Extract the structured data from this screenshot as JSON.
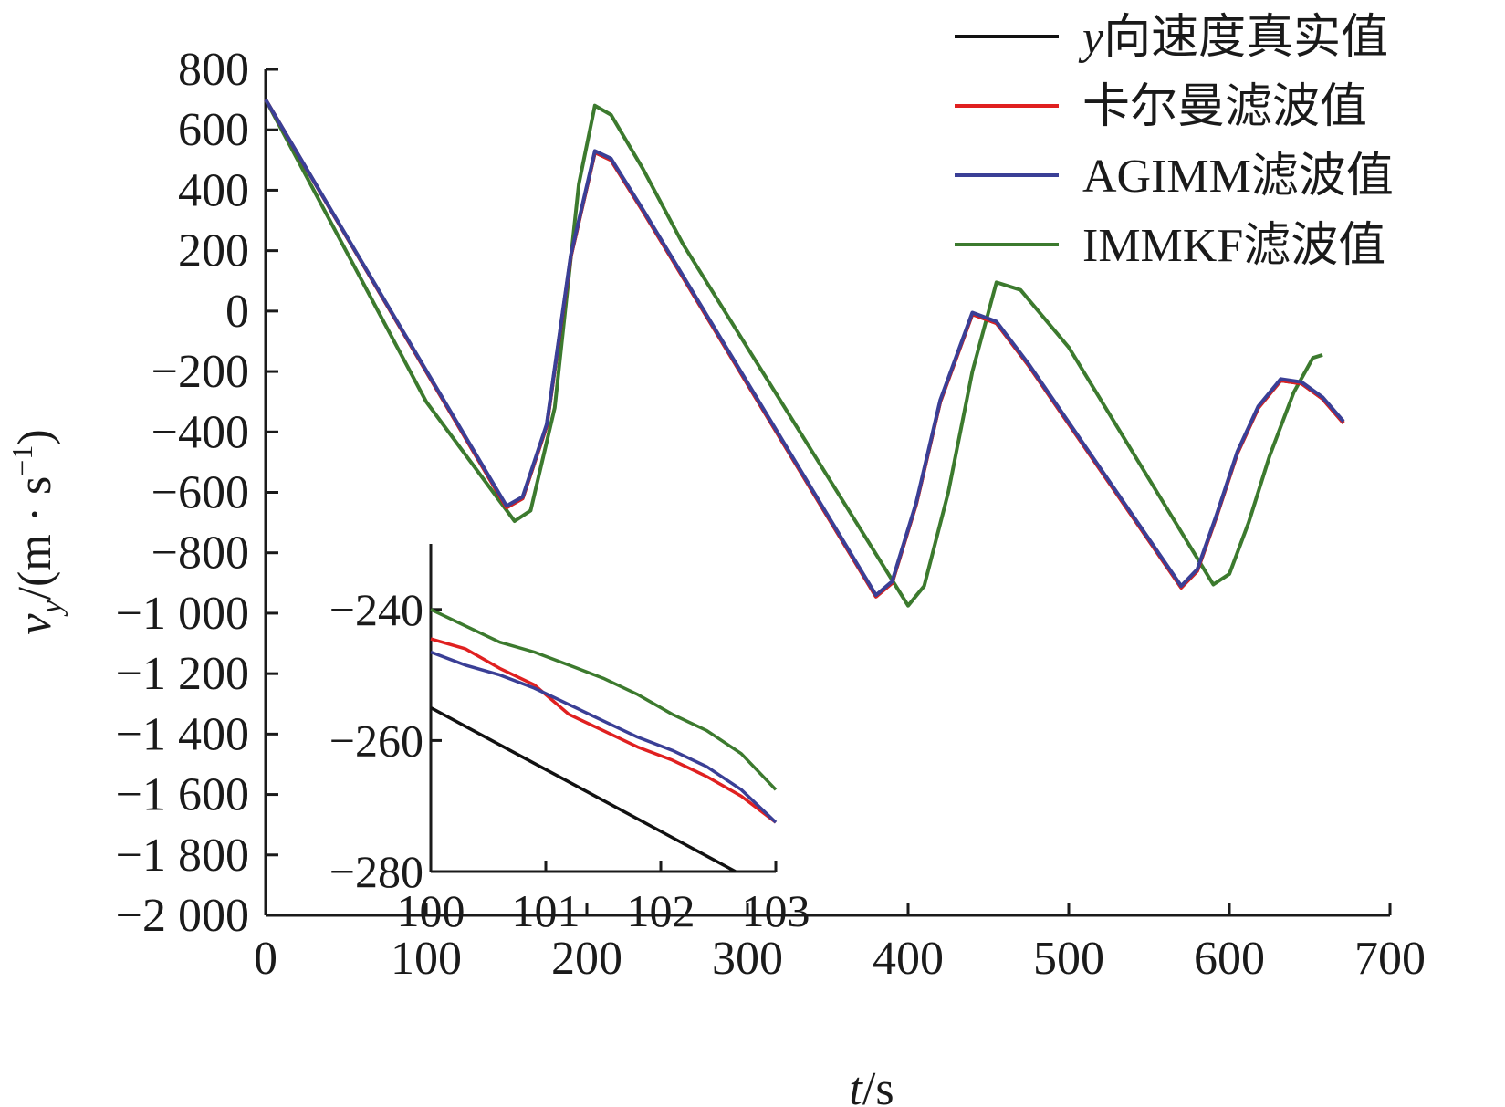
{
  "chart_data": [
    {
      "type": "line",
      "xlabel_var": "t",
      "xlabel_unit": "/s",
      "ylabel_var": "v",
      "ylabel_sub": "y",
      "ylabel_unit": "/(m · s",
      "ylabel_exp": "−1",
      "ylabel_close": ")",
      "xlim": [
        0,
        700
      ],
      "ylim": [
        -2000,
        800
      ],
      "x_ticks": [
        0,
        100,
        200,
        300,
        400,
        500,
        600,
        700
      ],
      "x_tick_labels": [
        "0",
        "100",
        "200",
        "300",
        "400",
        "500",
        "600",
        "700"
      ],
      "y_ticks": [
        800,
        600,
        400,
        200,
        0,
        -200,
        -400,
        -600,
        -800,
        -1000,
        -1200,
        -1400,
        -1600,
        -1800,
        -2000
      ],
      "y_tick_labels": [
        "800",
        "600",
        "400",
        "200",
        "0",
        "−200",
        "−400",
        "−600",
        "−800",
        "−1 000",
        "−1 200",
        "−1 400",
        "−1 600",
        "−1 800",
        "−2 000"
      ],
      "legend_position": "top-right",
      "series": [
        {
          "name_prefix": "y",
          "name": "向速度真实值",
          "color": "#111111",
          "x": [
            0,
            150,
            160,
            175,
            190,
            205,
            215,
            235,
            380,
            390,
            405,
            420,
            440,
            455,
            475,
            570,
            580,
            592,
            605,
            618,
            632,
            645,
            658,
            671
          ],
          "y": [
            700,
            -650,
            -620,
            -380,
            180,
            525,
            500,
            330,
            -945,
            -900,
            -640,
            -300,
            -10,
            -40,
            -180,
            -915,
            -860,
            -680,
            -470,
            -320,
            -230,
            -240,
            -290,
            -370
          ]
        },
        {
          "name": "卡尔曼滤波值",
          "color": "#e02020",
          "x": [
            0,
            150,
            160,
            175,
            190,
            205,
            215,
            235,
            380,
            390,
            405,
            420,
            440,
            455,
            475,
            570,
            580,
            592,
            605,
            618,
            632,
            645,
            658,
            671
          ],
          "y": [
            700,
            -650,
            -620,
            -380,
            180,
            525,
            500,
            330,
            -945,
            -900,
            -640,
            -300,
            -10,
            -40,
            -180,
            -915,
            -860,
            -680,
            -470,
            -320,
            -230,
            -240,
            -290,
            -370
          ]
        },
        {
          "name": "AGIMM滤波值",
          "color": "#3a3f96",
          "x": [
            0,
            150,
            160,
            175,
            190,
            205,
            215,
            235,
            380,
            390,
            405,
            420,
            440,
            455,
            475,
            570,
            580,
            592,
            605,
            618,
            632,
            645,
            658,
            671
          ],
          "y": [
            700,
            -645,
            -615,
            -375,
            185,
            530,
            505,
            335,
            -940,
            -895,
            -635,
            -295,
            -5,
            -35,
            -175,
            -910,
            -855,
            -675,
            -465,
            -315,
            -225,
            -235,
            -285,
            -365
          ]
        },
        {
          "name": "IMMKF滤波值",
          "color": "#3c7a2e",
          "x": [
            0,
            100,
            155,
            165,
            180,
            195,
            205,
            215,
            235,
            260,
            400,
            410,
            425,
            440,
            455,
            470,
            500,
            590,
            600,
            612,
            625,
            640,
            652,
            658
          ],
          "y": [
            700,
            -300,
            -695,
            -660,
            -320,
            420,
            680,
            650,
            470,
            220,
            -975,
            -910,
            -600,
            -200,
            95,
            70,
            -120,
            -905,
            -870,
            -700,
            -480,
            -270,
            -155,
            -145
          ]
        }
      ]
    },
    {
      "type": "line",
      "inset": true,
      "xlim": [
        100,
        103
      ],
      "ylim": [
        -280,
        -230
      ],
      "x_ticks": [
        100,
        101,
        102,
        103
      ],
      "x_tick_labels": [
        "100",
        "101",
        "102",
        "103"
      ],
      "y_ticks": [
        -240,
        -260,
        -280
      ],
      "y_tick_labels": [
        "−240",
        "−260",
        "−280"
      ],
      "series": [
        {
          "name": "y向速度真实值",
          "color": "#111111",
          "x": [
            100,
            102.65
          ],
          "y": [
            -255,
            -280
          ]
        },
        {
          "name": "卡尔曼滤波值",
          "color": "#e02020",
          "x": [
            100,
            100.3,
            100.6,
            100.9,
            101.2,
            101.5,
            101.8,
            102.1,
            102.4,
            102.7,
            103
          ],
          "y": [
            -244.5,
            -246,
            -249,
            -251.5,
            -256,
            -258.5,
            -261,
            -263,
            -265.5,
            -268.5,
            -272.5
          ]
        },
        {
          "name": "AGIMM滤波值",
          "color": "#3a3f96",
          "x": [
            100,
            100.3,
            100.6,
            100.9,
            101.2,
            101.5,
            101.8,
            102.1,
            102.4,
            102.7,
            103
          ],
          "y": [
            -246.5,
            -248.5,
            -250,
            -252,
            -254.5,
            -257,
            -259.5,
            -261.5,
            -264,
            -267.5,
            -272.5
          ]
        },
        {
          "name": "IMMKF滤波值",
          "color": "#3c7a2e",
          "x": [
            100,
            100.3,
            100.6,
            100.9,
            101.2,
            101.5,
            101.8,
            102.1,
            102.4,
            102.7,
            103
          ],
          "y": [
            -240,
            -242.5,
            -245,
            -246.5,
            -248.5,
            -250.5,
            -253,
            -256,
            -258.5,
            -262,
            -267.5
          ]
        }
      ]
    }
  ]
}
